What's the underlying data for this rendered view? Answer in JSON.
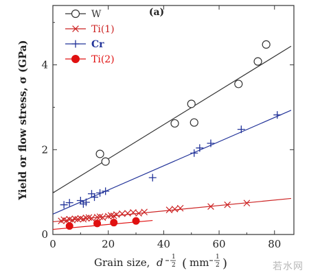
{
  "chart_data": {
    "type": "scatter",
    "panel_label": "(a)",
    "xlabel": "Grain size, d^-1/2 (mm^-1/2)",
    "xlabel_parts": {
      "text": "Grain size,",
      "d": "d",
      "exp": "1",
      "expden": "2",
      "unit_open": "(",
      "unit": "mm",
      "unit_close": ")"
    },
    "ylabel": "Yield or flow stress, σ (GPa)",
    "xlim": [
      0,
      87
    ],
    "ylim": [
      0,
      5.4
    ],
    "xticks": [
      "0",
      "20",
      "40",
      "60",
      "80"
    ],
    "yticks": [
      "0",
      "2",
      "4"
    ],
    "legend_position": "top-left",
    "series": [
      {
        "name": "W",
        "marker": "circle-open",
        "color": "#333333",
        "x": [
          17,
          19,
          44,
          50,
          51,
          67,
          74,
          77
        ],
        "y": [
          1.9,
          1.72,
          2.62,
          3.08,
          2.64,
          3.55,
          4.08,
          4.48
        ],
        "fit": [
          [
            0,
            0.98
          ],
          [
            86,
            4.44
          ]
        ]
      },
      {
        "name": "Ti(1)",
        "marker": "x",
        "color": "#cc2222",
        "x": [
          3,
          4,
          5,
          6,
          7,
          8,
          9,
          10,
          11,
          12,
          13,
          14,
          16,
          17,
          18,
          20,
          21,
          22,
          23,
          25,
          27,
          29,
          31,
          33,
          42,
          44,
          46,
          57,
          63,
          70
        ],
        "y": [
          0.32,
          0.35,
          0.33,
          0.36,
          0.34,
          0.37,
          0.36,
          0.38,
          0.36,
          0.39,
          0.4,
          0.38,
          0.41,
          0.42,
          0.4,
          0.43,
          0.45,
          0.44,
          0.47,
          0.49,
          0.5,
          0.52,
          0.5,
          0.53,
          0.58,
          0.6,
          0.62,
          0.66,
          0.7,
          0.74
        ],
        "fit": [
          [
            0,
            0.3
          ],
          [
            86,
            0.85
          ]
        ]
      },
      {
        "name": "Cr",
        "marker": "plus",
        "color": "#223399",
        "x": [
          4,
          6,
          10,
          11,
          12,
          14,
          15,
          17,
          19,
          36,
          51,
          53,
          57,
          68,
          81
        ],
        "y": [
          0.7,
          0.75,
          0.8,
          0.72,
          0.76,
          0.96,
          0.88,
          0.98,
          1.02,
          1.34,
          1.92,
          2.04,
          2.15,
          2.48,
          2.82
        ],
        "fit": [
          [
            0,
            0.48
          ],
          [
            86,
            2.93
          ]
        ]
      },
      {
        "name": "Ti(2)",
        "marker": "circle-filled",
        "color": "#e01010",
        "x": [
          6,
          16,
          22,
          30
        ],
        "y": [
          0.2,
          0.26,
          0.28,
          0.32
        ],
        "fit": [
          [
            0,
            0.12
          ],
          [
            36,
            0.33
          ]
        ]
      }
    ]
  },
  "colors": {
    "axis": "#333333",
    "w": "#333333",
    "ti1": "#cc2222",
    "cr": "#223399",
    "ti2": "#e01010"
  },
  "watermark": "若水网"
}
